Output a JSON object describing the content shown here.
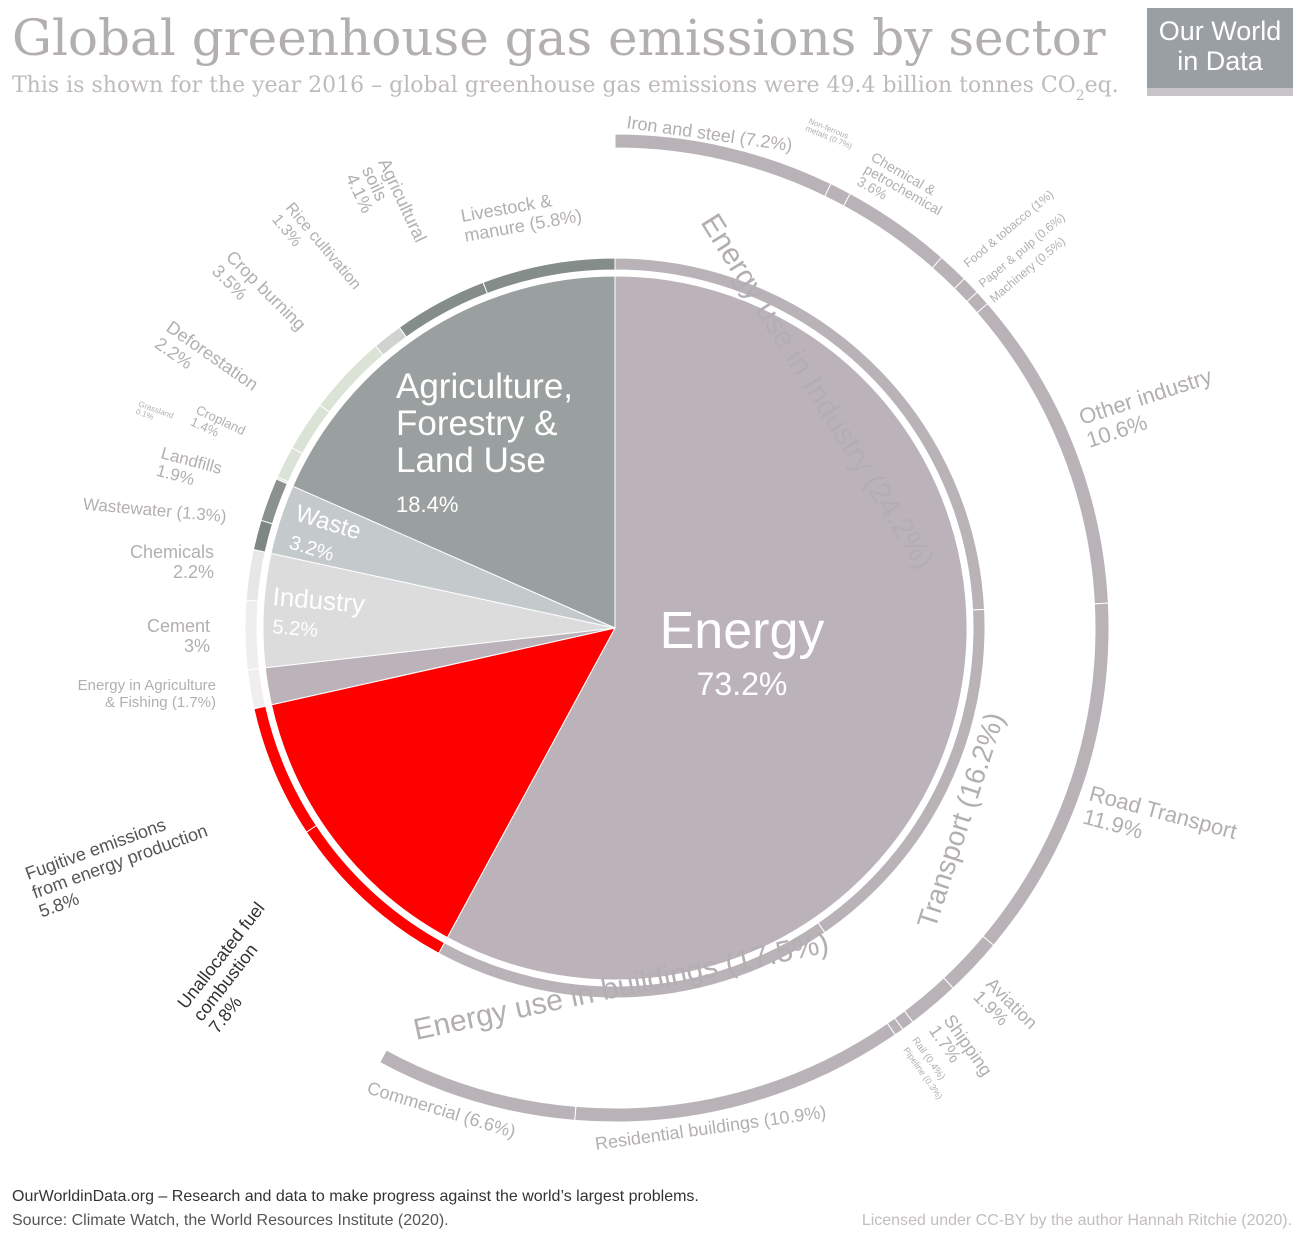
{
  "header": {
    "title": "Global greenhouse gas emissions by sector",
    "subtitle_pre": "This is shown for the year 2016 – global greenhouse gas emissions were 49.4 billion tonnes CO",
    "subtitle_sub": "2",
    "subtitle_post": "eq."
  },
  "logo": {
    "text": "Our World\nin Data"
  },
  "footer": {
    "site": "OurWorldinData.org",
    "tagline": " – Research and data to make progress against the world’s largest problems.",
    "source": "Source: Climate Watch, the World Resources Institute (2020).",
    "license": "Licensed under CC-BY by the author Hannah Ritchie  (2020)."
  },
  "colors": {
    "energy": "#bbb3b9",
    "afolu": "#9aa09f",
    "waste": "#c4c9cb",
    "industry": "#dcdcdc",
    "highlight": "#ff0000",
    "text_light": "#b3aeb2"
  },
  "chart_data": {
    "type": "pie",
    "title": "Global greenhouse gas emissions by sector",
    "unit": "% of global greenhouse gas emissions (2016)",
    "sectors": [
      {
        "name": "Energy",
        "value": 73.2,
        "label": "Energy",
        "value_label": "73.2%"
      },
      {
        "name": "Agriculture, Forestry & Land Use",
        "value": 18.4,
        "label": "Agriculture,\nForestry &\nLand Use",
        "value_label": "18.4%"
      },
      {
        "name": "Waste",
        "value": 3.2,
        "label": "Waste",
        "value_label": "3.2%"
      },
      {
        "name": "Industry",
        "value": 5.2,
        "label": "Industry",
        "value_label": "5.2%"
      }
    ],
    "subsectors": [
      {
        "name": "Livestock & manure",
        "value": 5.8,
        "label": "Livestock &\nmanure (5.8%)"
      },
      {
        "name": "Agricultural soils",
        "value": 4.1,
        "label": "Agricultural\nsoils\n4.1%"
      },
      {
        "name": "Rice cultivation",
        "value": 1.3,
        "label": "Rice cultivation\n1.3%"
      },
      {
        "name": "Crop burning",
        "value": 3.5,
        "label": "Crop burning\n3.5%"
      },
      {
        "name": "Deforestation",
        "value": 2.2,
        "label": "Deforestation\n2.2%"
      },
      {
        "name": "Cropland",
        "value": 1.4,
        "label": "Cropland\n1.4%"
      },
      {
        "name": "Grassland",
        "value": 0.1,
        "label": "Grassland\n0.1%"
      },
      {
        "name": "Landfills",
        "value": 1.9,
        "label": "Landfills\n1.9%"
      },
      {
        "name": "Wastewater",
        "value": 1.3,
        "label": "Wastewater (1.3%)"
      },
      {
        "name": "Chemicals",
        "value": 2.2,
        "label": "Chemicals\n2.2%"
      },
      {
        "name": "Cement",
        "value": 3,
        "label": "Cement\n3%"
      },
      {
        "name": "Energy in Agriculture & Fishing",
        "value": 1.7,
        "label": "Energy in Agriculture\n& Fishing (1.7%)"
      },
      {
        "name": "Fugitive emissions from energy production",
        "value": 5.8,
        "label": "Fugitive emissions\nfrom energy production\n5.8%",
        "highlight": true
      },
      {
        "name": "Unallocated fuel combustion",
        "value": 7.8,
        "label": "Unallocated fuel\ncombustion\n7.8%",
        "highlight": true
      },
      {
        "name": "Commercial",
        "value": 6.6,
        "label": "Commercial  (6.6%)"
      },
      {
        "name": "Residential buildings",
        "value": 10.9,
        "label": "Residential buildings (10.9%)"
      },
      {
        "name": "Pipeline",
        "value": 0.3,
        "label": "Pipeline (0.3%)"
      },
      {
        "name": "Rail",
        "value": 0.4,
        "label": "Rail (0.4%)"
      },
      {
        "name": "Shipping",
        "value": 1.7,
        "label": "Shipping\n1.7%"
      },
      {
        "name": "Aviation",
        "value": 1.9,
        "label": "Aviation\n1.9%"
      },
      {
        "name": "Road Transport",
        "value": 11.9,
        "label": "Road Transport\n11.9%"
      },
      {
        "name": "Other industry",
        "value": 10.6,
        "label": "Other industry\n10.6%"
      },
      {
        "name": "Machinery",
        "value": 0.5,
        "label": "Machinery (0.5%)"
      },
      {
        "name": "Paper & pulp",
        "value": 0.6,
        "label": "Paper & pulp (0.6%)"
      },
      {
        "name": "Food & tobacco",
        "value": 1,
        "label": "Food & tobacco (1%)"
      },
      {
        "name": "Chemical & petrochemical",
        "value": 3.6,
        "label": "Chemical &\npetrochemical\n3.6%"
      },
      {
        "name": "Non-ferrous metals",
        "value": 0.7,
        "label": "Non-ferrous\nmetals (0.7%)"
      },
      {
        "name": "Iron and steel",
        "value": 7.2,
        "label": "Iron and steel (7.2%)"
      }
    ],
    "energy_groups": [
      {
        "name": "Energy use in Industry",
        "value": 24.2,
        "label": "Energy use in Industry (24.2%)"
      },
      {
        "name": "Transport",
        "value": 16.2,
        "label": "Transport (16.2%)"
      },
      {
        "name": "Energy use in buildings",
        "value": 17.5,
        "label": "Energy use in buildings (17.5%)"
      }
    ]
  }
}
